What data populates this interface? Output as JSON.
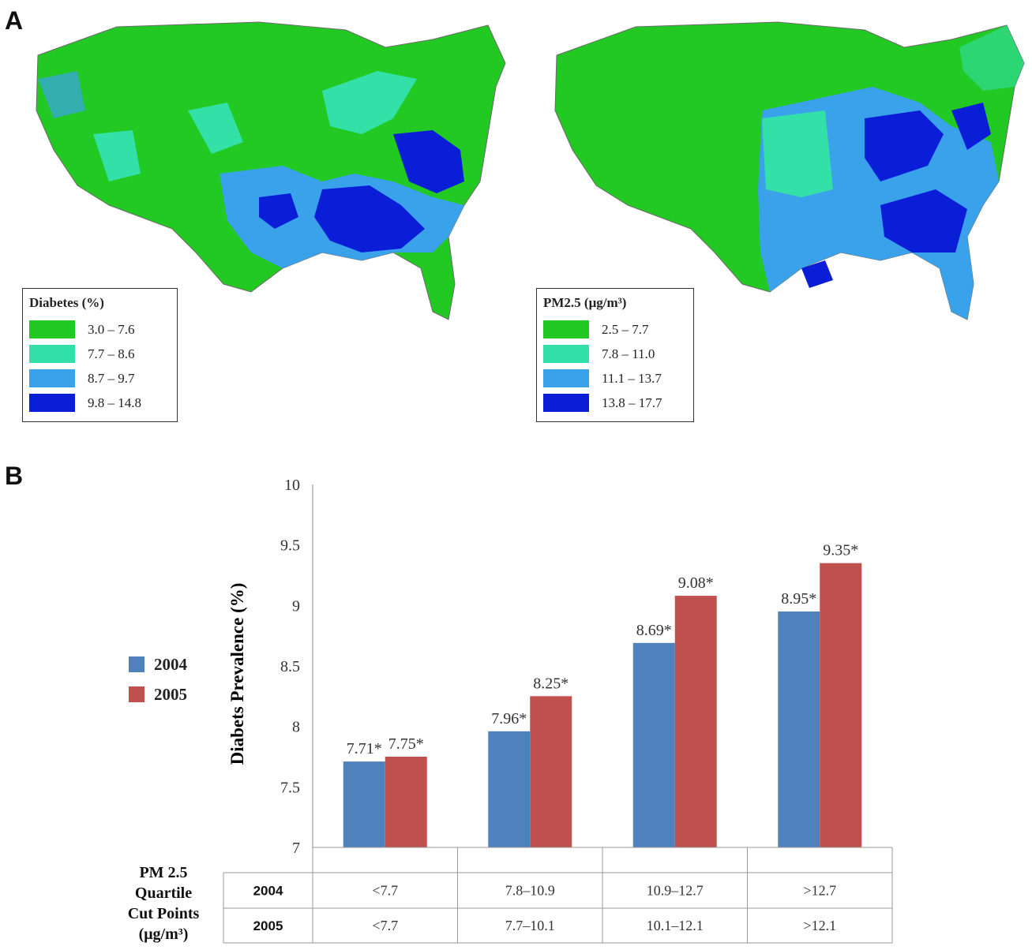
{
  "panel_a": {
    "letter": "A",
    "diabetes_legend": {
      "title": "Diabetes (%)",
      "items": [
        {
          "label": "3.0 – 7.6",
          "color": "#22c922"
        },
        {
          "label": "7.7 – 8.6",
          "color": "#33e0a8"
        },
        {
          "label": "8.7 – 9.7",
          "color": "#3aa2ea"
        },
        {
          "label": "9.8 – 14.8",
          "color": "#0a1ed8"
        }
      ]
    },
    "pm_legend": {
      "title": "PM2.5 (μg/m³)",
      "items": [
        {
          "label": "2.5 – 7.7",
          "color": "#22c922"
        },
        {
          "label": "7.8 – 11.0",
          "color": "#33e0a8"
        },
        {
          "label": "11.1 – 13.7",
          "color": "#3aa2ea"
        },
        {
          "label": "13.8 – 17.7",
          "color": "#0a1ed8"
        }
      ]
    }
  },
  "panel_b": {
    "letter": "B",
    "table": {
      "header": [
        "PM 2.5",
        "Quartile",
        "Cut Points",
        "(μg/m³)"
      ],
      "rows": [
        {
          "year": "2004",
          "cells": [
            "<7.7",
            "7.8–10.9",
            "10.9–12.7",
            ">12.7"
          ]
        },
        {
          "year": "2005",
          "cells": [
            "<7.7",
            "7.7–10.1",
            "10.1–12.1",
            ">12.1"
          ]
        }
      ]
    }
  },
  "chart_data": {
    "type": "bar",
    "ylabel": "Diabets Prevalence (%)",
    "ylim": [
      7,
      10
    ],
    "yticks": [
      "7",
      "7.5",
      "8",
      "8.5",
      "9",
      "9.5",
      "10"
    ],
    "grid": false,
    "legend_position": "left",
    "categories": [
      "<7.7",
      "7.8–10.9",
      "10.9–12.7",
      ">12.7"
    ],
    "series": [
      {
        "name": "2004",
        "color": "#4f81bd",
        "values": [
          7.71,
          7.96,
          8.69,
          8.95
        ],
        "labels": [
          "7.71*",
          "7.96*",
          "8.69*",
          "8.95*"
        ]
      },
      {
        "name": "2005",
        "color": "#c0504d",
        "values": [
          7.75,
          8.25,
          9.08,
          9.35
        ],
        "labels": [
          "7.75*",
          "8.25*",
          "9.08*",
          "9.35*"
        ]
      }
    ]
  }
}
